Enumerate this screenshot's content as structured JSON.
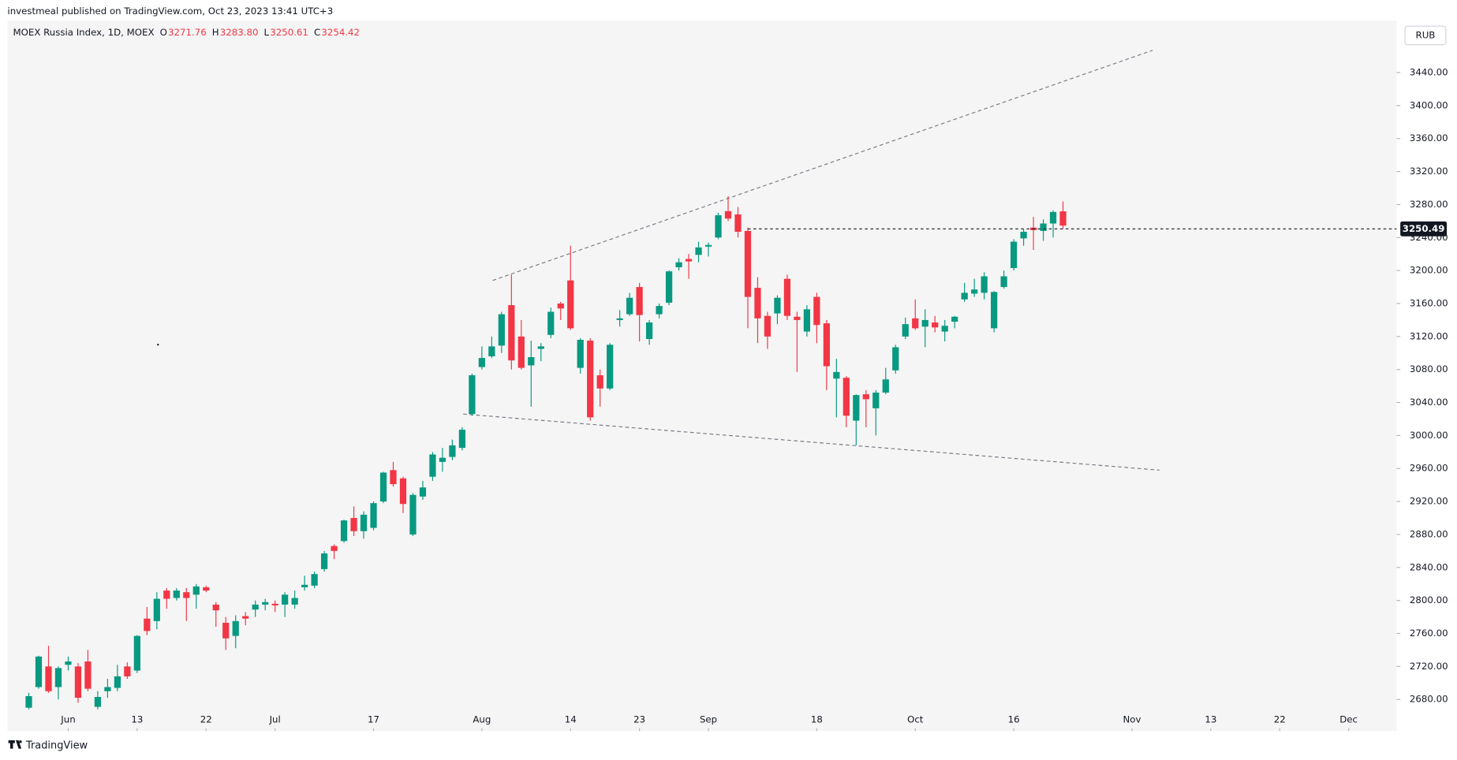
{
  "header": {
    "publisher": "investmeal published on TradingView.com, Oct 23, 2023 13:41 UTC+3",
    "currency": "RUB",
    "brand": "TradingView"
  },
  "chart_data": {
    "type": "candlestick",
    "legend": {
      "name": "MOEX Russia Index, 1D, MOEX",
      "fields": [
        [
          "O",
          "3271.76"
        ],
        [
          "H",
          "3283.80"
        ],
        [
          "L",
          "3250.61"
        ],
        [
          "C",
          "3254.42"
        ]
      ]
    },
    "up_color": "#089981",
    "down_color": "#f23645",
    "open": [
      2670,
      2695,
      2720,
      2695,
      2722,
      2720,
      2726,
      2671,
      2690,
      2694,
      2720,
      2715,
      2778,
      2775,
      2812,
      2803,
      2810,
      2807,
      2816,
      2795,
      2773,
      2757,
      2781,
      2789,
      2795,
      2796,
      2795,
      2795,
      2816,
      2818,
      2838,
      2866,
      2872,
      2900,
      2884,
      2888,
      2920,
      2958,
      2948,
      2880,
      2926,
      2950,
      2968,
      2974,
      2985,
      3026,
      3083,
      3096,
      3109,
      3158,
      3120,
      3085,
      3105,
      3122,
      3160,
      3188,
      3082,
      3115,
      3073,
      3057,
      3140,
      3147,
      3180,
      3117,
      3147,
      3161,
      3204,
      3214,
      3219,
      3229,
      3240,
      3272,
      3268,
      3248,
      3179,
      3145,
      3148,
      3190,
      3144,
      3126,
      3168,
      3136,
      3069,
      3070,
      3018,
      3050,
      3033,
      3052,
      3079,
      3120,
      3142,
      3132,
      3137,
      3126,
      3138,
      3165,
      3172,
      3173,
      3130,
      3180,
      3203,
      3239,
      3252,
      3248,
      3257,
      3271.76
    ],
    "high": [
      2688,
      2733,
      2745,
      2720,
      2732,
      2724,
      2740,
      2690,
      2705,
      2722,
      2725,
      2758,
      2792,
      2810,
      2815,
      2815,
      2815,
      2820,
      2818,
      2798,
      2780,
      2782,
      2786,
      2800,
      2802,
      2800,
      2810,
      2812,
      2830,
      2835,
      2860,
      2868,
      2898,
      2914,
      2908,
      2920,
      2956,
      2968,
      2950,
      2930,
      2945,
      2980,
      2985,
      2995,
      3010,
      3075,
      3108,
      3120,
      3150,
      3195,
      3140,
      3115,
      3112,
      3155,
      3162,
      3230,
      3118,
      3118,
      3080,
      3112,
      3152,
      3173,
      3185,
      3140,
      3160,
      3200,
      3215,
      3220,
      3235,
      3234,
      3270,
      3290,
      3277,
      3252,
      3192,
      3150,
      3170,
      3195,
      3150,
      3158,
      3173,
      3140,
      3093,
      3072,
      3050,
      3055,
      3055,
      3082,
      3110,
      3143,
      3165,
      3153,
      3145,
      3140,
      3145,
      3185,
      3190,
      3198,
      3175,
      3200,
      3238,
      3250,
      3265,
      3262,
      3273,
      3283.8
    ],
    "low": [
      2668,
      2693,
      2688,
      2680,
      2715,
      2676,
      2690,
      2668,
      2682,
      2690,
      2705,
      2712,
      2758,
      2765,
      2790,
      2800,
      2775,
      2790,
      2810,
      2768,
      2740,
      2742,
      2770,
      2780,
      2788,
      2786,
      2780,
      2790,
      2812,
      2815,
      2835,
      2850,
      2870,
      2878,
      2875,
      2885,
      2918,
      2938,
      2906,
      2878,
      2922,
      2945,
      2956,
      2970,
      2982,
      3024,
      3080,
      3094,
      3100,
      3080,
      3080,
      3035,
      3090,
      3118,
      3140,
      3128,
      3075,
      3018,
      3035,
      3055,
      3132,
      3145,
      3114,
      3110,
      3142,
      3158,
      3200,
      3190,
      3210,
      3217,
      3238,
      3260,
      3240,
      3130,
      3112,
      3105,
      3135,
      3140,
      3077,
      3120,
      3112,
      3055,
      3022,
      3010,
      2988,
      3010,
      3000,
      3050,
      3075,
      3117,
      3128,
      3107,
      3125,
      3114,
      3130,
      3162,
      3168,
      3165,
      3125,
      3178,
      3200,
      3230,
      3225,
      3236,
      3240,
      3250.61
    ],
    "close": [
      2684,
      2732,
      2690,
      2718,
      2726,
      2682,
      2693,
      2683,
      2695,
      2708,
      2708,
      2757,
      2763,
      2802,
      2802,
      2812,
      2803,
      2817,
      2812,
      2788,
      2754,
      2775,
      2778,
      2795,
      2798,
      2794,
      2807,
      2803,
      2819,
      2832,
      2857,
      2860,
      2897,
      2884,
      2904,
      2918,
      2955,
      2941,
      2917,
      2928,
      2937,
      2977,
      2973,
      2988,
      3007,
      3073,
      3094,
      3108,
      3147,
      3091,
      3082,
      3095,
      3108,
      3150,
      3154,
      3130,
      3116,
      3022,
      3057,
      3110,
      3142,
      3167,
      3146,
      3137,
      3157,
      3199,
      3210,
      3211,
      3228,
      3231,
      3267,
      3263,
      3247,
      3168,
      3142,
      3120,
      3167,
      3145,
      3140,
      3153,
      3134,
      3084,
      3077,
      3024,
      3049,
      3044,
      3052,
      3068,
      3107,
      3135,
      3130,
      3140,
      3131,
      3133,
      3144,
      3173,
      3177,
      3193,
      3174,
      3193,
      3235,
      3247,
      3249,
      3257,
      3271,
      3254.42
    ],
    "xlim": [
      -2.17,
      138.87
    ],
    "xticks": [
      {
        "value": 4,
        "label": "Jun"
      },
      {
        "value": 11,
        "label": "13"
      },
      {
        "value": 18,
        "label": "22"
      },
      {
        "value": 25,
        "label": "Jul"
      },
      {
        "value": 35,
        "label": "17"
      },
      {
        "value": 46,
        "label": "Aug"
      },
      {
        "value": 55,
        "label": "14"
      },
      {
        "value": 62,
        "label": "23"
      },
      {
        "value": 69,
        "label": "Sep"
      },
      {
        "value": 80,
        "label": "18"
      },
      {
        "value": 90,
        "label": "Oct"
      },
      {
        "value": 100,
        "label": "16"
      },
      {
        "value": 112,
        "label": "Nov"
      },
      {
        "value": 120,
        "label": "13"
      },
      {
        "value": 127,
        "label": "22"
      },
      {
        "value": 134,
        "label": "Dec"
      }
    ],
    "ylim": [
      2641.7,
      3503.0
    ],
    "yticks": [
      {
        "value": 2680,
        "label": "2680.00"
      },
      {
        "value": 2720,
        "label": "2720.00"
      },
      {
        "value": 2760,
        "label": "2760.00"
      },
      {
        "value": 2800,
        "label": "2800.00"
      },
      {
        "value": 2840,
        "label": "2840.00"
      },
      {
        "value": 2880,
        "label": "2880.00"
      },
      {
        "value": 2920,
        "label": "2920.00"
      },
      {
        "value": 2960,
        "label": "2960.00"
      },
      {
        "value": 3000,
        "label": "3000.00"
      },
      {
        "value": 3040,
        "label": "3040.00"
      },
      {
        "value": 3080,
        "label": "3080.00"
      },
      {
        "value": 3120,
        "label": "3120.00"
      },
      {
        "value": 3160,
        "label": "3160.00"
      },
      {
        "value": 3200,
        "label": "3200.00"
      },
      {
        "value": 3240,
        "label": "3240.00"
      },
      {
        "value": 3280,
        "label": "3280.00"
      },
      {
        "value": 3320,
        "label": "3320.00"
      },
      {
        "value": 3360,
        "label": "3360.00"
      },
      {
        "value": 3400,
        "label": "3400.00"
      },
      {
        "value": 3440,
        "label": "3440.00"
      }
    ],
    "trendlines": [
      {
        "x": [
          47.1,
          114.1
        ],
        "y": [
          3188,
          3467
        ]
      },
      {
        "x": [
          44.1,
          114.8
        ],
        "y": [
          3026,
          2958
        ]
      }
    ],
    "price_line": {
      "start": 73,
      "value": 3250.49,
      "label": "3250.49"
    }
  }
}
